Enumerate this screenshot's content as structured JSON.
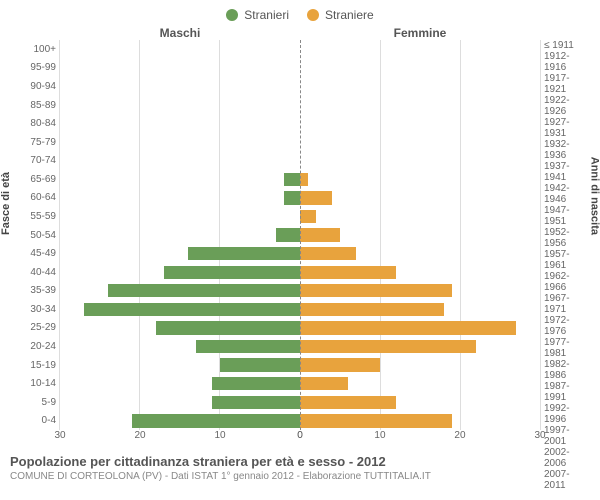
{
  "legend": {
    "male": {
      "label": "Stranieri",
      "color": "#6a9e58"
    },
    "female": {
      "label": "Straniere",
      "color": "#e8a33d"
    }
  },
  "columns": {
    "male": "Maschi",
    "female": "Femmine"
  },
  "axis_labels": {
    "left": "Fasce di età",
    "right": "Anni di nascita"
  },
  "x": {
    "max": 30,
    "ticks": [
      0,
      10,
      20,
      30
    ]
  },
  "grid_color": "#dddddd",
  "centerline_color": "#888888",
  "background_color": "#ffffff",
  "bar_height_pct": 72,
  "title_fontsize": 13,
  "sub_fontsize": 10,
  "axis_fontsize": 10,
  "rows": [
    {
      "age": "100+",
      "birth": "≤ 1911",
      "m": 0,
      "f": 0
    },
    {
      "age": "95-99",
      "birth": "1912-1916",
      "m": 0,
      "f": 0
    },
    {
      "age": "90-94",
      "birth": "1917-1921",
      "m": 0,
      "f": 0
    },
    {
      "age": "85-89",
      "birth": "1922-1926",
      "m": 0,
      "f": 0
    },
    {
      "age": "80-84",
      "birth": "1927-1931",
      "m": 0,
      "f": 0
    },
    {
      "age": "75-79",
      "birth": "1932-1936",
      "m": 0,
      "f": 0
    },
    {
      "age": "70-74",
      "birth": "1937-1941",
      "m": 0,
      "f": 0
    },
    {
      "age": "65-69",
      "birth": "1942-1946",
      "m": 2,
      "f": 1
    },
    {
      "age": "60-64",
      "birth": "1947-1951",
      "m": 2,
      "f": 4
    },
    {
      "age": "55-59",
      "birth": "1952-1956",
      "m": 0,
      "f": 2
    },
    {
      "age": "50-54",
      "birth": "1957-1961",
      "m": 3,
      "f": 5
    },
    {
      "age": "45-49",
      "birth": "1962-1966",
      "m": 14,
      "f": 7
    },
    {
      "age": "40-44",
      "birth": "1967-1971",
      "m": 17,
      "f": 12
    },
    {
      "age": "35-39",
      "birth": "1972-1976",
      "m": 24,
      "f": 19
    },
    {
      "age": "30-34",
      "birth": "1977-1981",
      "m": 27,
      "f": 18
    },
    {
      "age": "25-29",
      "birth": "1982-1986",
      "m": 18,
      "f": 27
    },
    {
      "age": "20-24",
      "birth": "1987-1991",
      "m": 13,
      "f": 22
    },
    {
      "age": "15-19",
      "birth": "1992-1996",
      "m": 10,
      "f": 10
    },
    {
      "age": "10-14",
      "birth": "1997-2001",
      "m": 11,
      "f": 6
    },
    {
      "age": "5-9",
      "birth": "2002-2006",
      "m": 11,
      "f": 12
    },
    {
      "age": "0-4",
      "birth": "2007-2011",
      "m": 21,
      "f": 19
    }
  ],
  "footer": {
    "title": "Popolazione per cittadinanza straniera per età e sesso - 2012",
    "sub": "COMUNE DI CORTEOLONA (PV) - Dati ISTAT 1° gennaio 2012 - Elaborazione TUTTITALIA.IT"
  }
}
